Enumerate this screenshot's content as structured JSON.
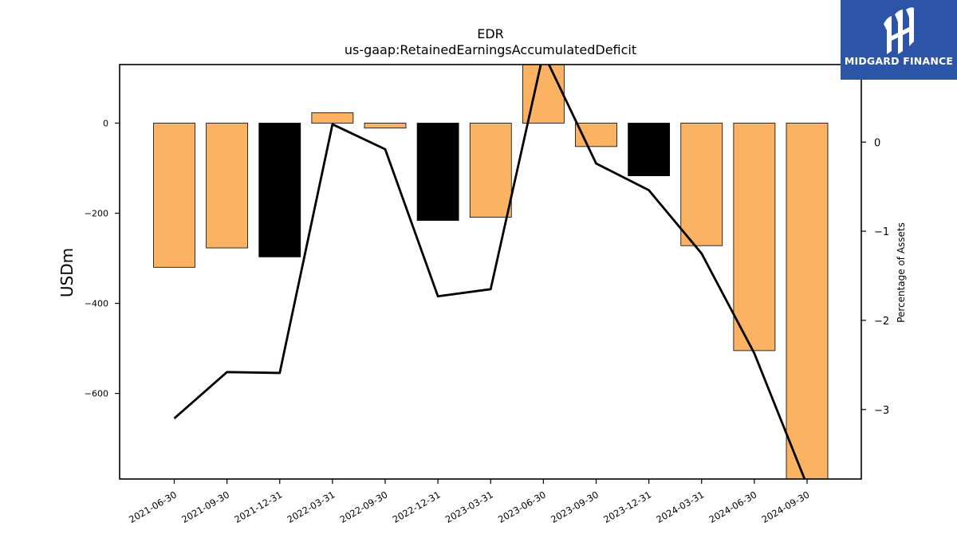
{
  "chart_data": {
    "type": "bar",
    "title": "EDR",
    "subtitle": "us-gaap:RetainedEarningsAccumulatedDeficit",
    "ylabel": "USDm",
    "ylabel_right": "Percentage of Assets",
    "categories": [
      "2021-06-30",
      "2021-09-30",
      "2021-12-31",
      "2022-03-31",
      "2022-09-30",
      "2022-12-31",
      "2023-03-31",
      "2023-06-30",
      "2023-09-30",
      "2023-12-31",
      "2024-03-31",
      "2024-06-30",
      "2024-09-30"
    ],
    "series": [
      {
        "type": "bar",
        "values": [
          -320,
          -277,
          -297,
          23,
          -11,
          -216,
          -209,
          140,
          -52,
          -117,
          -272,
          -505,
          -800
        ],
        "colors": [
          "#fbb263",
          "#fbb263",
          "#000000",
          "#fbb263",
          "#fbb263",
          "#000000",
          "#fbb263",
          "#fbb263",
          "#fbb263",
          "#000000",
          "#fbb263",
          "#fbb263",
          "#fbb263"
        ]
      },
      {
        "type": "line",
        "axis": "right",
        "color": "#000000",
        "values": [
          -3.1,
          -2.58,
          -2.59,
          0.2,
          -0.08,
          -1.73,
          -1.65,
          1.0,
          -0.24,
          -0.54,
          -1.25,
          -2.37,
          -3.85
        ]
      }
    ],
    "ylim": [
      -790,
      130
    ],
    "ylim_right": [
      -3.78,
      0.87
    ],
    "yticks": [
      0,
      -200,
      -400,
      -600
    ],
    "yticks_right": [
      0,
      -1,
      -2,
      -3
    ],
    "grid": false
  },
  "brand": {
    "name": "MIDGARD FINANCE",
    "color": "#2c55a8"
  }
}
